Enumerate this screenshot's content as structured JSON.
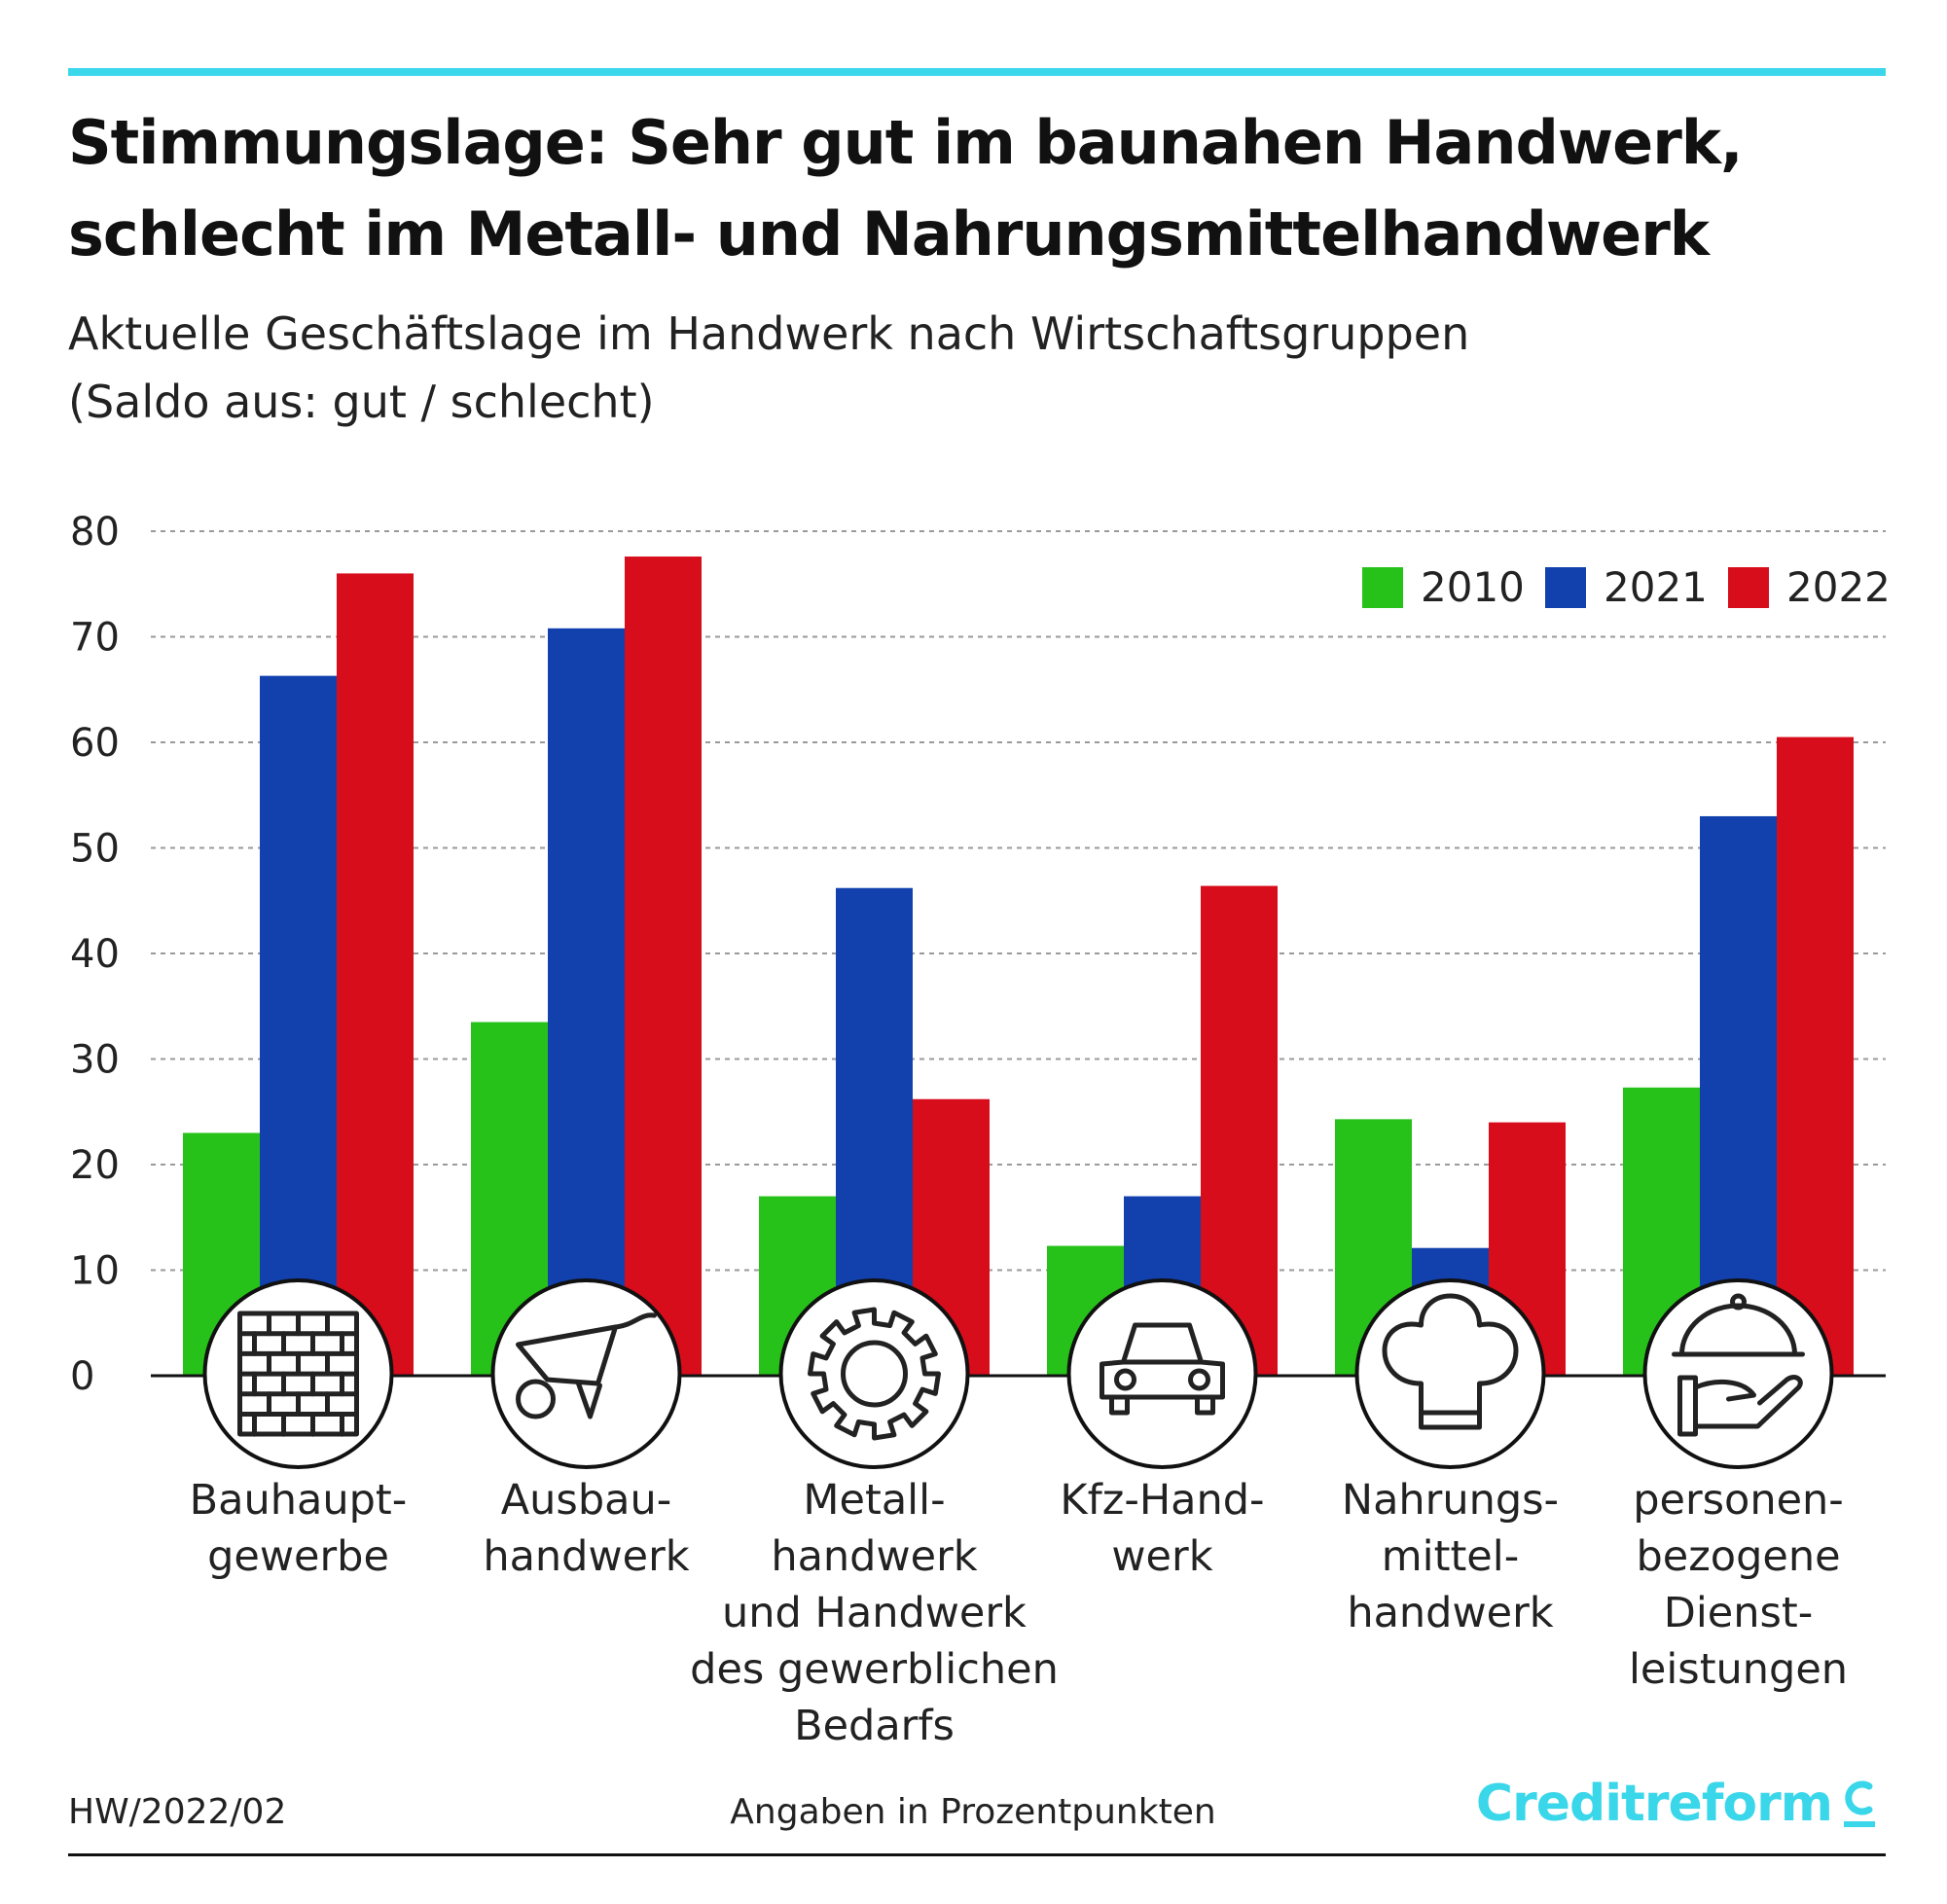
{
  "header": {
    "title_line1": "Stimmungslage: Sehr gut im baunahen Handwerk,",
    "title_line2": "schlecht im Metall- und Nahrungsmittelhandwerk",
    "subtitle_line1": "Aktuelle Geschäftslage im Handwerk nach Wirtschaftsgruppen",
    "subtitle_line2": "(Saldo aus: gut / schlecht)"
  },
  "colors": {
    "accent": "#3ad6ea",
    "series_2010": "#26c21a",
    "series_2021": "#1241ae",
    "series_2022": "#d70d1c"
  },
  "chart_data": {
    "type": "bar",
    "title": "Aktuelle Geschäftslage im Handwerk nach Wirtschaftsgruppen",
    "xlabel": "",
    "ylabel": "",
    "ylim": [
      0,
      80
    ],
    "yticks": [
      0,
      10,
      20,
      30,
      40,
      50,
      60,
      70,
      80
    ],
    "grid": true,
    "legend_position": "top-right",
    "categories": [
      {
        "label_lines": [
          "Bauhaupt-",
          "gewerbe"
        ],
        "icon": "brick-wall-icon"
      },
      {
        "label_lines": [
          "Ausbau-",
          "handwerk"
        ],
        "icon": "wheelbarrow-icon"
      },
      {
        "label_lines": [
          "Metall-",
          "handwerk",
          "und Handwerk",
          "des gewerblichen",
          "Bedarfs"
        ],
        "icon": "gear-icon"
      },
      {
        "label_lines": [
          "Kfz-Hand-",
          "werk"
        ],
        "icon": "car-icon"
      },
      {
        "label_lines": [
          "Nahrungs-",
          "mittel-",
          "handwerk"
        ],
        "icon": "chef-hat-icon"
      },
      {
        "label_lines": [
          "personen-",
          "bezogene",
          "Dienst-",
          "leistungen"
        ],
        "icon": "cloche-hand-icon"
      }
    ],
    "series": [
      {
        "name": "2010",
        "color": "#26c21a",
        "values": [
          23,
          33.5,
          17,
          12.3,
          24.3,
          27.3
        ]
      },
      {
        "name": "2021",
        "color": "#1241ae",
        "values": [
          66.3,
          70.8,
          46.2,
          17,
          12.1,
          53
        ]
      },
      {
        "name": "2022",
        "color": "#d70d1c",
        "values": [
          76,
          77.6,
          26.2,
          46.4,
          24,
          60.5
        ]
      }
    ]
  },
  "footer": {
    "code": "HW/2022/02",
    "note": "Angaben in Prozentpunkten",
    "brand": "Creditreform"
  }
}
